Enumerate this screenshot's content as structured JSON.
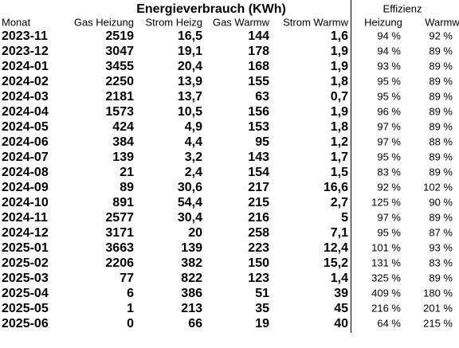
{
  "header": {
    "title": "Energieverbrauch (KWh)",
    "group": "Effizienz"
  },
  "table": {
    "columns": [
      "Monat",
      "Gas Heizung",
      "Strom Heizg",
      "Gas Warmw",
      "Strom Warmw",
      "Heizung",
      "Warmw"
    ],
    "rows": [
      [
        "2023-11",
        "2519",
        "16,5",
        "144",
        "1,6",
        "94 %",
        "92 %"
      ],
      [
        "2023-12",
        "3047",
        "19,1",
        "178",
        "1,9",
        "94 %",
        "89 %"
      ],
      [
        "2024-01",
        "3455",
        "20,4",
        "168",
        "1,9",
        "93 %",
        "89 %"
      ],
      [
        "2024-02",
        "2250",
        "13,9",
        "155",
        "1,8",
        "95 %",
        "89 %"
      ],
      [
        "2024-03",
        "2181",
        "13,7",
        "63",
        "0,7",
        "95 %",
        "89 %"
      ],
      [
        "2024-04",
        "1573",
        "10,5",
        "156",
        "1,9",
        "96 %",
        "89 %"
      ],
      [
        "2024-05",
        "424",
        "4,9",
        "153",
        "1,8",
        "97 %",
        "89 %"
      ],
      [
        "2024-06",
        "384",
        "4,4",
        "95",
        "1,2",
        "97 %",
        "88 %"
      ],
      [
        "2024-07",
        "139",
        "3,2",
        "143",
        "1,7",
        "95 %",
        "89 %"
      ],
      [
        "2024-08",
        "21",
        "2,4",
        "154",
        "1,5",
        "83 %",
        "89 %"
      ],
      [
        "2024-09",
        "89",
        "30,6",
        "217",
        "16,6",
        "92 %",
        "102 %"
      ],
      [
        "2024-10",
        "891",
        "54,4",
        "215",
        "2,7",
        "125 %",
        "90 %"
      ],
      [
        "2024-11",
        "2577",
        "30,4",
        "216",
        "5",
        "97 %",
        "89 %"
      ],
      [
        "2024-12",
        "3171",
        "20",
        "258",
        "7,1",
        "95 %",
        "87 %"
      ],
      [
        "2025-01",
        "3663",
        "139",
        "223",
        "12,4",
        "101 %",
        "93 %"
      ],
      [
        "2025-02",
        "2206",
        "382",
        "150",
        "15,2",
        "131 %",
        "83 %"
      ],
      [
        "2025-03",
        "77",
        "822",
        "123",
        "1,4",
        "325 %",
        "89 %"
      ],
      [
        "2025-04",
        "6",
        "386",
        "51",
        "39",
        "409 %",
        "180 %"
      ],
      [
        "2025-05",
        "1",
        "213",
        "35",
        "45",
        "216 %",
        "201 %"
      ],
      [
        "2025-06",
        "0",
        "66",
        "19",
        "40",
        "64 %",
        "215 %"
      ]
    ]
  }
}
